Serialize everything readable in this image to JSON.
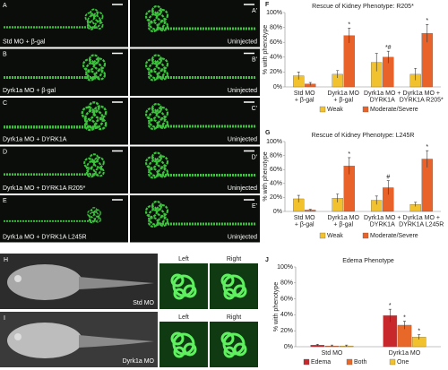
{
  "panels": [
    {
      "letter": "A",
      "caption": "Std MO + β-gal",
      "letter2": "A'",
      "caption2": "Uninjected"
    },
    {
      "letter": "B",
      "caption": "Dyrk1a MO + β-gal",
      "letter2": "B'",
      "caption2": "Uninjected"
    },
    {
      "letter": "C",
      "caption": "Dyrk1a MO + DYRK1A",
      "letter2": "C'",
      "caption2": "Uninjected"
    },
    {
      "letter": "D",
      "caption": "Dyrk1a MO + DYRK1A R205*",
      "letter2": "D'",
      "caption2": "Uninjected"
    },
    {
      "letter": "E",
      "caption": "Dyrk1a MO + DYRK1A L245R",
      "letter2": "E'",
      "caption2": "Uninjected"
    }
  ],
  "whole": [
    {
      "letter": "H",
      "caption": "Std MO",
      "left": "Left",
      "right": "Right"
    },
    {
      "letter": "I",
      "caption": "Dyrk1a MO",
      "left": "Left",
      "right": "Right"
    }
  ],
  "chart_data": [
    {
      "type": "bar",
      "panel": "F",
      "title": "Rescue of Kidney Phenotype: R205*",
      "y_label": "% with phenotype",
      "categories": [
        [
          "Std MO",
          "+ β-gal"
        ],
        [
          "Dyrk1a MO",
          "+ β-gal"
        ],
        [
          "Dyrk1a MO +",
          "DYRK1A"
        ],
        [
          "Dyrk1a MO +",
          "DYRK1A R205*"
        ]
      ],
      "ylim": [
        0,
        100
      ],
      "yticks": [
        {
          "value": 0,
          "label": "0%"
        },
        {
          "value": 20,
          "label": "20%"
        },
        {
          "value": 40,
          "label": "40%"
        },
        {
          "value": 60,
          "label": "60%"
        },
        {
          "value": 80,
          "label": "80%"
        },
        {
          "value": 100,
          "label": "100%"
        }
      ],
      "series": [
        {
          "name": "Weak",
          "color": "#f2c12e",
          "values": [
            15,
            17,
            33,
            17
          ],
          "errors": [
            5,
            5,
            12,
            8
          ],
          "annotations": [
            null,
            null,
            null,
            null
          ]
        },
        {
          "name": "Moderate/Severe",
          "color": "#e8622a",
          "values": [
            4,
            69,
            40,
            72
          ],
          "errors": [
            2,
            10,
            8,
            12
          ],
          "annotations": [
            null,
            "*",
            "*#",
            "*"
          ]
        }
      ]
    },
    {
      "type": "bar",
      "panel": "G",
      "title": "Rescue of Kidney Phenotype: L245R",
      "y_label": "% with phenotype",
      "categories": [
        [
          "Std MO",
          "+ β-gal"
        ],
        [
          "Dyrk1a MO",
          "+ β-gal"
        ],
        [
          "Dyrk1a MO +",
          "DYRK1A"
        ],
        [
          "Dyrk1a MO +",
          "DYRK1A L245R"
        ]
      ],
      "ylim": [
        0,
        100
      ],
      "yticks": [
        {
          "value": 0,
          "label": "0%"
        },
        {
          "value": 20,
          "label": "20%"
        },
        {
          "value": 40,
          "label": "40%"
        },
        {
          "value": 60,
          "label": "60%"
        },
        {
          "value": 80,
          "label": "80%"
        },
        {
          "value": 100,
          "label": "100%"
        }
      ],
      "series": [
        {
          "name": "Weak",
          "color": "#f2c12e",
          "values": [
            18,
            19,
            16,
            10
          ],
          "errors": [
            5,
            6,
            6,
            3
          ],
          "annotations": [
            null,
            null,
            null,
            null
          ]
        },
        {
          "name": "Moderate/Severe",
          "color": "#e8622a",
          "values": [
            2,
            65,
            34,
            75
          ],
          "errors": [
            1,
            12,
            10,
            12
          ],
          "annotations": [
            null,
            "*",
            "#",
            "*"
          ]
        }
      ]
    },
    {
      "type": "bar",
      "panel": "J",
      "title": "Edema Phenotype",
      "y_label": "% with phenotype",
      "categories": [
        [
          "Std MO"
        ],
        [
          "Dyrk1a MO"
        ]
      ],
      "ylim": [
        0,
        100
      ],
      "yticks": [
        {
          "value": 0,
          "label": "0%"
        },
        {
          "value": 20,
          "label": "20%"
        },
        {
          "value": 40,
          "label": "40%"
        },
        {
          "value": 60,
          "label": "60%"
        },
        {
          "value": 80,
          "label": "80%"
        },
        {
          "value": 100,
          "label": "100%"
        }
      ],
      "series": [
        {
          "name": "Edema",
          "color": "#c8282c",
          "values": [
            2,
            39
          ],
          "errors": [
            1,
            8
          ],
          "annotations": [
            null,
            "*"
          ]
        },
        {
          "name": "Both",
          "color": "#e8682a",
          "values": [
            1,
            27
          ],
          "errors": [
            1,
            5
          ],
          "annotations": [
            null,
            "*"
          ]
        },
        {
          "name": "One",
          "color": "#f2c12e",
          "values": [
            1,
            12
          ],
          "errors": [
            1,
            3
          ],
          "annotations": [
            null,
            "*"
          ]
        }
      ]
    }
  ]
}
